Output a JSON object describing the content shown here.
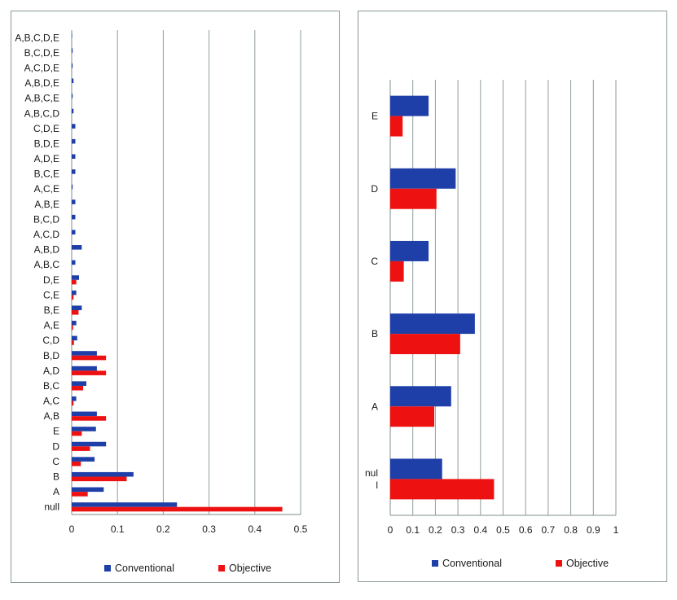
{
  "chart_data": [
    {
      "type": "bar",
      "orientation": "horizontal",
      "categories": [
        "null",
        "A",
        "B",
        "C",
        "D",
        "E",
        "A,B",
        "A,C",
        "B,C",
        "A,D",
        "B,D",
        "C,D",
        "A,E",
        "B,E",
        "C,E",
        "D,E",
        "A,B,C",
        "A,B,D",
        "A,C,D",
        "B,C,D",
        "A,B,E",
        "A,C,E",
        "B,C,E",
        "A,D,E",
        "B,D,E",
        "C,D,E",
        "A,B,C,D",
        "A,B,C,E",
        "A,B,D,E",
        "A,C,D,E",
        "B,C,D,E",
        "A,B,C,D,E"
      ],
      "series": [
        {
          "name": "Conventional",
          "color": "#1f3fa8",
          "values": [
            0.23,
            0.07,
            0.135,
            0.05,
            0.075,
            0.053,
            0.055,
            0.01,
            0.032,
            0.055,
            0.055,
            0.012,
            0.01,
            0.022,
            0.01,
            0.016,
            0.008,
            0.022,
            0.008,
            0.008,
            0.008,
            0.002,
            0.008,
            0.008,
            0.008,
            0.008,
            0.004,
            0.002,
            0.004,
            0.002,
            0.002,
            0.001
          ]
        },
        {
          "name": "Objective",
          "color": "#ee1111",
          "values": [
            0.46,
            0.035,
            0.12,
            0.02,
            0.04,
            0.022,
            0.075,
            0.004,
            0.025,
            0.075,
            0.075,
            0.005,
            0.003,
            0.015,
            0.004,
            0.01,
            0,
            0,
            0,
            0,
            0,
            0,
            0,
            0,
            0,
            0,
            0,
            0,
            0,
            0,
            0,
            0
          ]
        }
      ],
      "xlim": [
        0,
        0.5
      ],
      "xticks": [
        "0",
        "0.1",
        "0.2",
        "0.3",
        "0.4",
        "0.5"
      ],
      "legend": [
        "Conventional",
        "Objective"
      ],
      "grid": true,
      "legend_position": "bottom"
    },
    {
      "type": "bar",
      "orientation": "horizontal",
      "categories": [
        "null",
        "A",
        "B",
        "C",
        "D",
        "E"
      ],
      "category_display": [
        "nul\nl",
        "A",
        "B",
        "C",
        "D",
        "E"
      ],
      "series": [
        {
          "name": "Conventional",
          "color": "#1f3fa8",
          "values": [
            0.23,
            0.27,
            0.375,
            0.17,
            0.29,
            0.17
          ]
        },
        {
          "name": "Objective",
          "color": "#ee1111",
          "values": [
            0.46,
            0.195,
            0.31,
            0.06,
            0.205,
            0.055
          ]
        }
      ],
      "xlim": [
        0,
        1
      ],
      "xticks": [
        "0",
        "0.1",
        "0.2",
        "0.3",
        "0.4",
        "0.5",
        "0.6",
        "0.7",
        "0.8",
        "0.9",
        "1"
      ],
      "legend": [
        "Conventional",
        "Objective"
      ],
      "grid": true,
      "legend_position": "bottom"
    }
  ]
}
